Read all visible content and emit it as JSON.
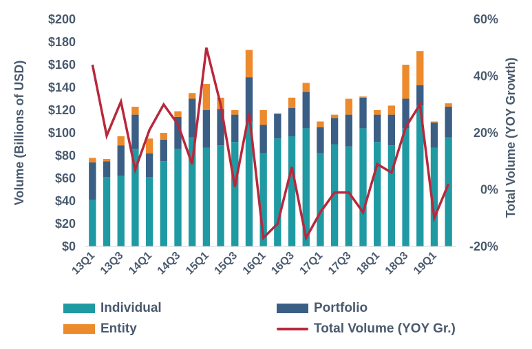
{
  "chart_data": {
    "type": "bar",
    "stacked": true,
    "categories": [
      "13Q1",
      "13Q2",
      "13Q3",
      "13Q4",
      "14Q1",
      "14Q2",
      "14Q3",
      "14Q4",
      "15Q1",
      "15Q2",
      "15Q3",
      "15Q4",
      "16Q1",
      "16Q2",
      "16Q3",
      "16Q4",
      "17Q1",
      "17Q2",
      "17Q3",
      "17Q4",
      "18Q1",
      "18Q2",
      "18Q3",
      "18Q4",
      "19Q1",
      "19Q2"
    ],
    "x_tick_labels": [
      "13Q1",
      "13Q3",
      "14Q1",
      "14Q3",
      "15Q1",
      "15Q3",
      "16Q1",
      "16Q3",
      "17Q1",
      "17Q3",
      "18Q1",
      "18Q3",
      "19Q1"
    ],
    "series": [
      {
        "name": "Individual",
        "color": "#1f9aa3",
        "axis": "left",
        "values": [
          41,
          61,
          62,
          86,
          61,
          75,
          86,
          96,
          87,
          89,
          92,
          110,
          82,
          95,
          97,
          104,
          82,
          90,
          88,
          104,
          92,
          89,
          104,
          124,
          87,
          96
        ]
      },
      {
        "name": "Portfolio",
        "color": "#3b5e85",
        "axis": "left",
        "values": [
          33,
          14,
          27,
          30,
          21,
          19,
          28,
          34,
          33,
          32,
          24,
          39,
          25,
          22,
          25,
          32,
          23,
          23,
          28,
          27,
          24,
          27,
          26,
          18,
          22,
          27
        ]
      },
      {
        "name": "Entity",
        "color": "#ec8a2c",
        "axis": "left",
        "values": [
          4,
          2,
          8,
          7,
          13,
          6,
          5,
          5,
          23,
          10,
          4,
          24,
          13,
          0,
          9,
          8,
          5,
          3,
          14,
          1,
          4,
          8,
          30,
          30,
          1,
          3
        ]
      },
      {
        "name": "Total Volume (YOY Gr.)",
        "color": "#b8283c",
        "type": "line",
        "axis": "right",
        "values": [
          44,
          19,
          31,
          7,
          21,
          30,
          23,
          9,
          50,
          30,
          1,
          27,
          -17,
          -12,
          8,
          -17,
          -8,
          -1,
          -1,
          -8,
          9,
          6,
          22,
          30,
          -10,
          2
        ]
      }
    ],
    "y_left": {
      "label": "Volume (Billions of USD)",
      "min": 0,
      "max": 200,
      "step": 20,
      "tick_labels": [
        "$0",
        "$20",
        "$40",
        "$60",
        "$80",
        "$100",
        "$120",
        "$140",
        "$160",
        "$180",
        "$200"
      ]
    },
    "y_right": {
      "label": "Total Volume (YOY Growth)",
      "min": -20,
      "max": 60,
      "step": 20,
      "tick_labels": [
        "-20%",
        "0%",
        "20%",
        "40%",
        "60%"
      ]
    },
    "grid": false,
    "legend_position": "bottom"
  },
  "legend": {
    "individual": {
      "label": "Individual",
      "color": "#1f9aa3"
    },
    "portfolio": {
      "label": "Portfolio",
      "color": "#3b5e85"
    },
    "entity": {
      "label": "Entity",
      "color": "#ec8a2c"
    },
    "total": {
      "label": "Total Volume (YOY Gr.)",
      "color": "#b8283c"
    }
  }
}
